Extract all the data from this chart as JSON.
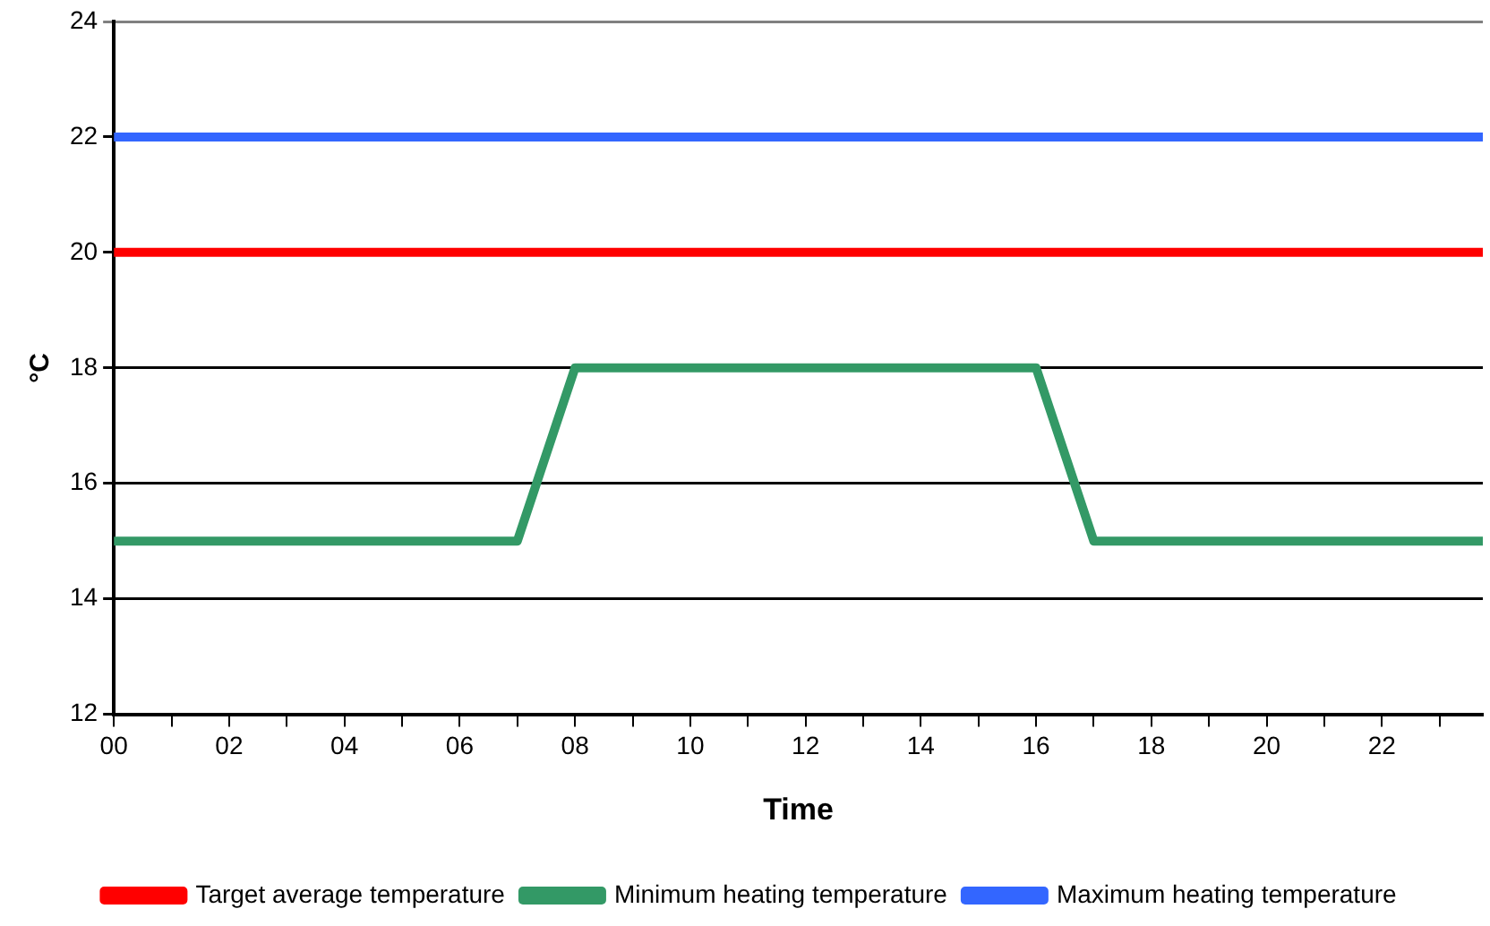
{
  "chart_data": {
    "type": "line",
    "xlabel": "Time",
    "ylabel": "°C",
    "xlim": [
      0,
      23.75
    ],
    "xticks": [
      {
        "value": 0,
        "label": "00"
      },
      {
        "value": 1,
        "label": null
      },
      {
        "value": 2,
        "label": "02"
      },
      {
        "value": 3,
        "label": null
      },
      {
        "value": 4,
        "label": "04"
      },
      {
        "value": 5,
        "label": null
      },
      {
        "value": 6,
        "label": "06"
      },
      {
        "value": 7,
        "label": null
      },
      {
        "value": 8,
        "label": "08"
      },
      {
        "value": 9,
        "label": null
      },
      {
        "value": 10,
        "label": "10"
      },
      {
        "value": 11,
        "label": null
      },
      {
        "value": 12,
        "label": "12"
      },
      {
        "value": 13,
        "label": null
      },
      {
        "value": 14,
        "label": "14"
      },
      {
        "value": 15,
        "label": null
      },
      {
        "value": 16,
        "label": "16"
      },
      {
        "value": 17,
        "label": null
      },
      {
        "value": 18,
        "label": "18"
      },
      {
        "value": 19,
        "label": null
      },
      {
        "value": 20,
        "label": "20"
      },
      {
        "value": 21,
        "label": null
      },
      {
        "value": 22,
        "label": "22"
      },
      {
        "value": 23,
        "label": null
      }
    ],
    "ylim": [
      12,
      24
    ],
    "yticks": [
      12,
      14,
      16,
      18,
      20,
      22,
      24
    ],
    "grid": "y",
    "legend": "bottom",
    "marker": "none",
    "line_style": "solid",
    "series": [
      {
        "name": "Target average temperature",
        "color": "#ff0000",
        "x": [
          0,
          23.75
        ],
        "values": [
          20,
          20
        ]
      },
      {
        "name": "Minimum heating temperature",
        "color": "#339966",
        "x": [
          0,
          7,
          8,
          16,
          17,
          23.75
        ],
        "values": [
          15,
          15,
          18,
          18,
          15,
          15
        ]
      },
      {
        "name": "Maximum heating temperature",
        "color": "#3366ff",
        "x": [
          0,
          23.75
        ],
        "values": [
          22,
          22
        ]
      }
    ]
  }
}
